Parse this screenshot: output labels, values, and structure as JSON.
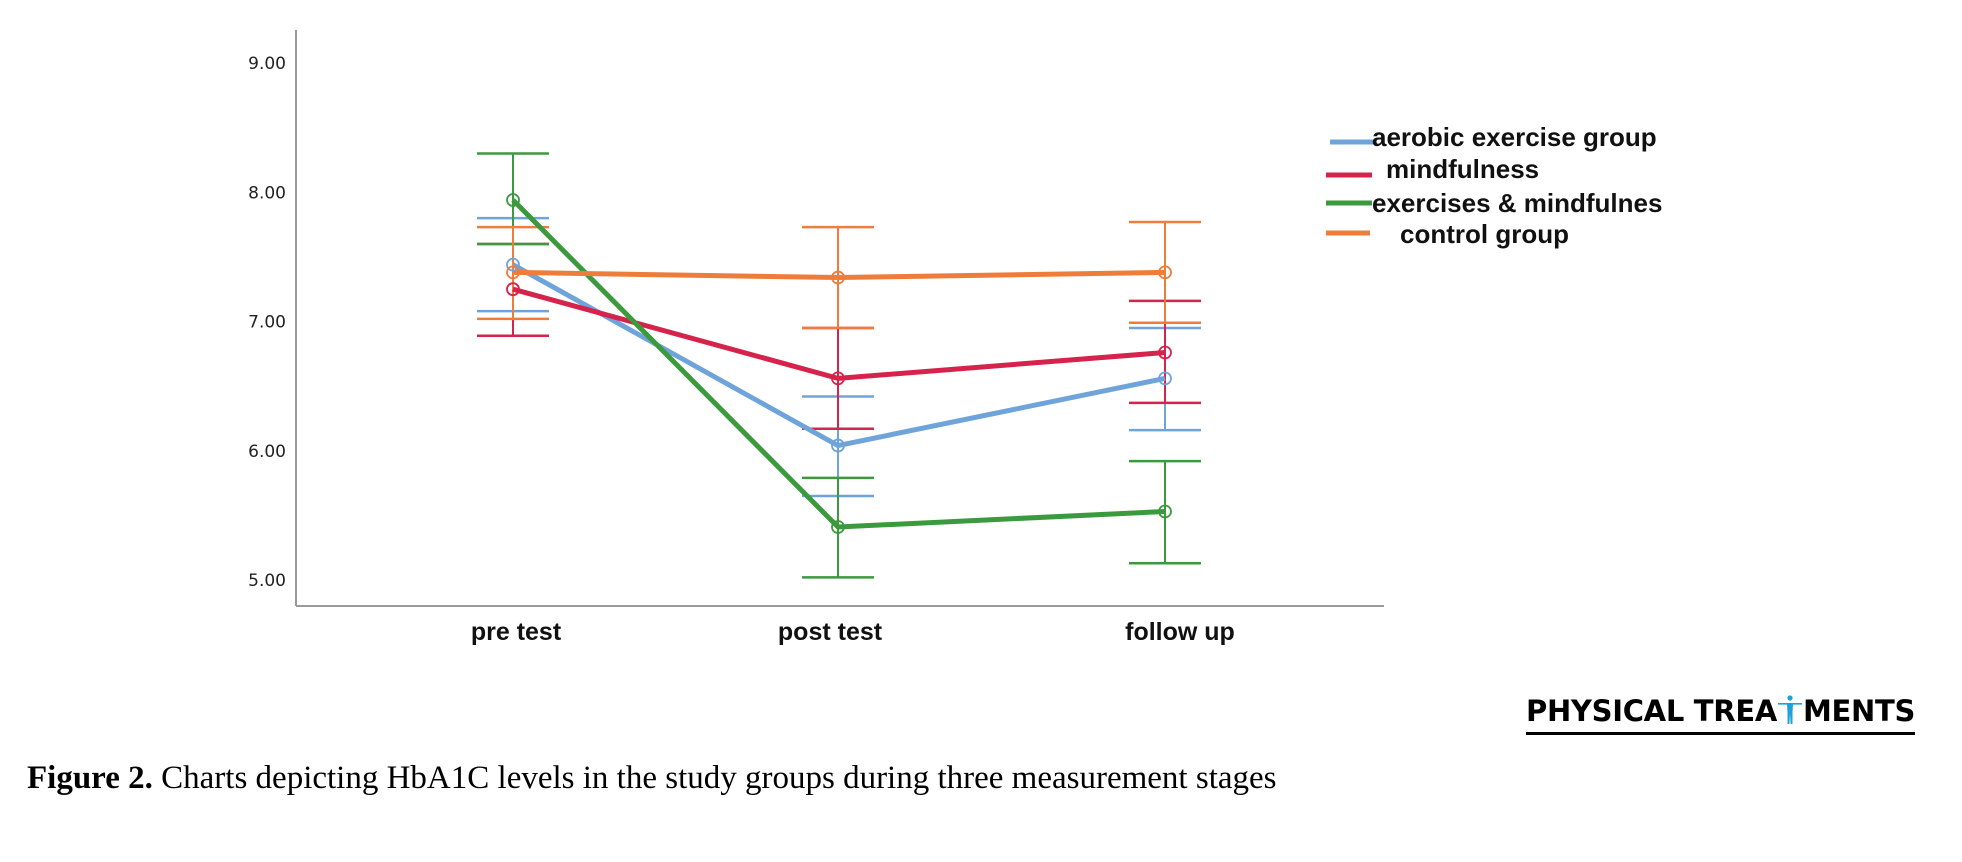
{
  "chart_data": {
    "type": "line",
    "title": "",
    "xlabel": "",
    "ylabel": "",
    "categories": [
      "pre test",
      "post test",
      "follow up"
    ],
    "yticks": [
      "5.00",
      "6.00",
      "7.00",
      "8.00",
      "9.00"
    ],
    "ylim": [
      4.8,
      9.3
    ],
    "grid": false,
    "legend_position": "top-right",
    "error_bars": true,
    "series": [
      {
        "name": "aerobic exercise group",
        "color": "#6FA4DA",
        "values": [
          7.44,
          6.04,
          6.56
        ],
        "lower": [
          7.08,
          5.65,
          6.16
        ],
        "upper": [
          7.8,
          6.42,
          6.95
        ]
      },
      {
        "name": "mindfulness",
        "color": "#D5234C",
        "values": [
          7.25,
          6.56,
          6.76
        ],
        "lower": [
          6.89,
          6.17,
          6.37
        ],
        "upper": [
          7.6,
          6.95,
          7.16
        ]
      },
      {
        "name": "exercises & mindfulnes",
        "color": "#3C9A3E",
        "values": [
          7.94,
          5.41,
          5.53
        ],
        "lower": [
          7.6,
          5.02,
          5.13
        ],
        "upper": [
          8.3,
          5.79,
          5.92
        ]
      },
      {
        "name": "control group",
        "color": "#EE7D3B",
        "values": [
          7.38,
          7.34,
          7.38
        ],
        "lower": [
          7.02,
          6.95,
          6.99
        ],
        "upper": [
          7.73,
          7.73,
          7.77
        ]
      }
    ]
  },
  "logo": {
    "text_before": "PHYSICAL TREA",
    "icon": "human-figure-icon",
    "text_after": "MENTS",
    "icon_color": "#1BA3D8"
  },
  "caption": {
    "label": "Figure 2.",
    "text": " Charts depicting HbA1C levels in the study groups during three measurement stages"
  }
}
